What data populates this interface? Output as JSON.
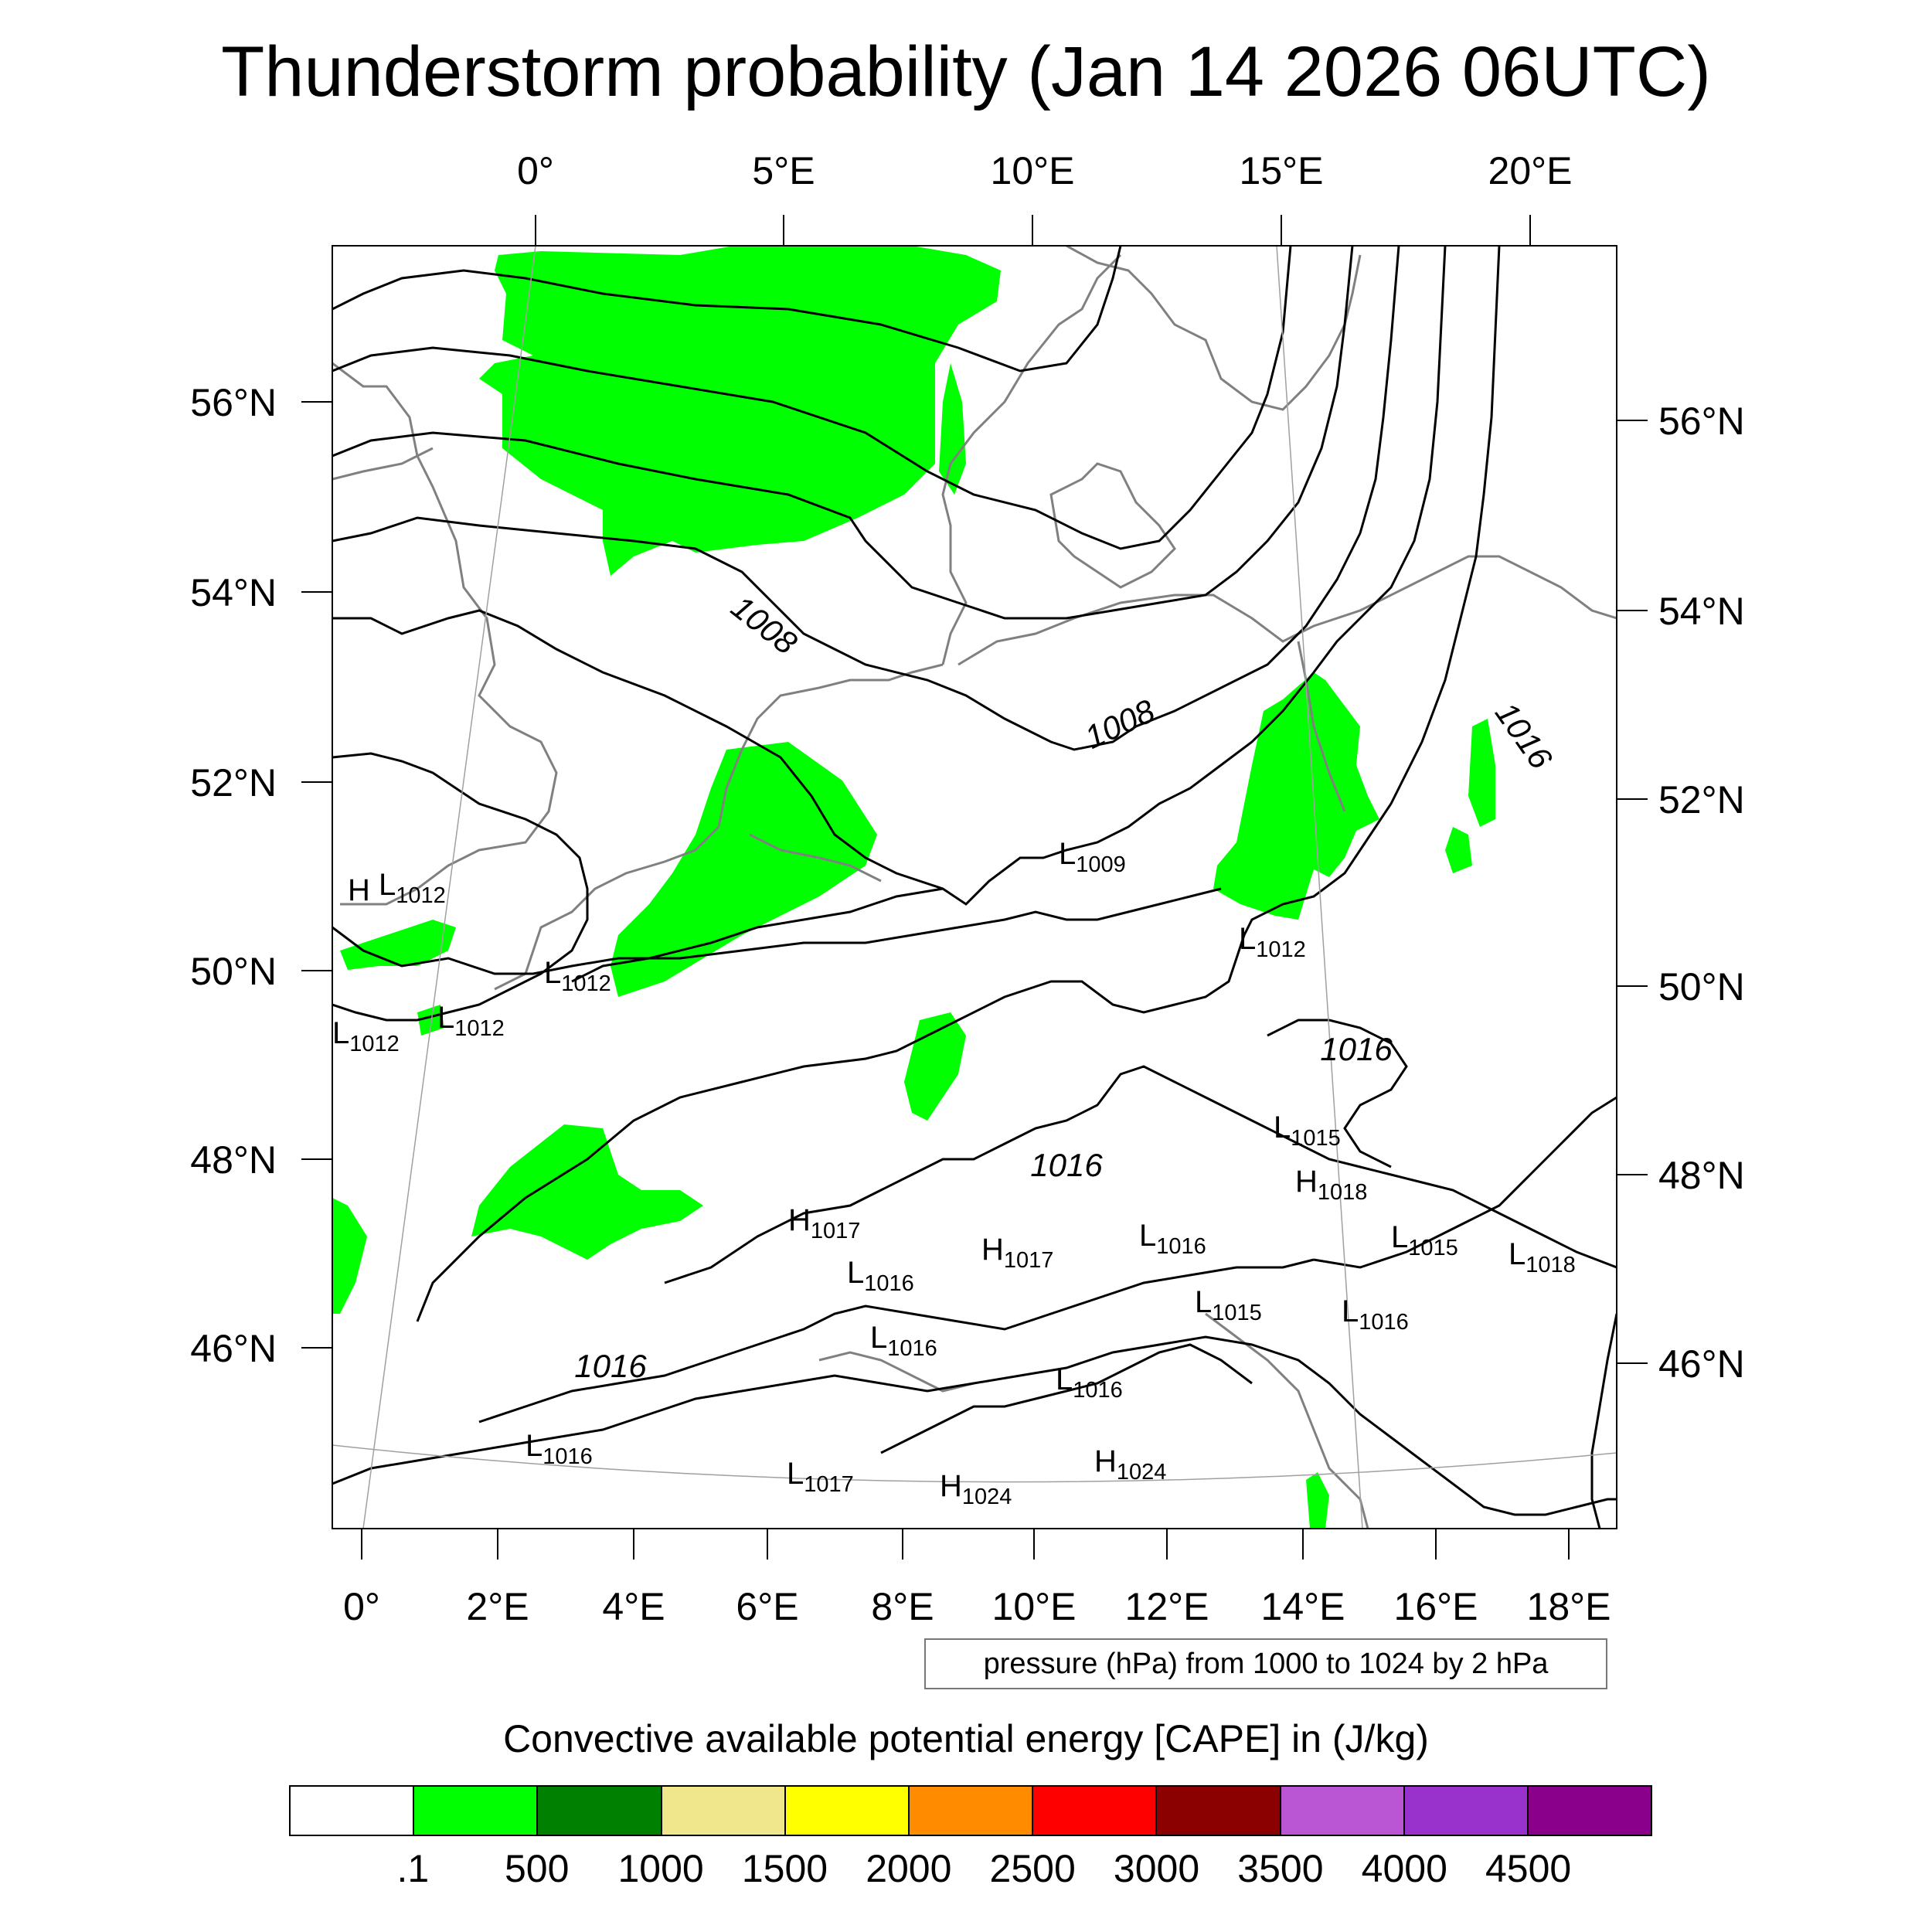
{
  "title": "Thunderstorm probability (Jan 14 2026 06UTC)",
  "top_lon_labels": [
    "0°",
    "5°E",
    "10°E",
    "15°E",
    "20°E"
  ],
  "bottom_lon_labels": [
    "0°",
    "2°E",
    "4°E",
    "6°E",
    "8°E",
    "10°E",
    "12°E",
    "14°E",
    "16°E",
    "18°E"
  ],
  "left_lat_labels": [
    "56°N",
    "54°N",
    "52°N",
    "50°N",
    "48°N",
    "46°N"
  ],
  "right_lat_labels": [
    "56°N",
    "54°N",
    "52°N",
    "50°N",
    "48°N",
    "46°N"
  ],
  "pressure_note": "pressure (hPa) from 1000 to 1024 by 2 hPa",
  "colorbar": {
    "title": "Convective available potential energy [CAPE] in (J/kg)",
    "colors": [
      "#ffffff",
      "#00ff00",
      "#008000",
      "#f0e68c",
      "#ffff00",
      "#ff8c00",
      "#ff0000",
      "#8b0000",
      "#ba55d3",
      "#9932cc",
      "#8b008b"
    ],
    "labels": [
      ".1",
      "500",
      "1000",
      "1500",
      "2000",
      "2500",
      "3000",
      "3500",
      "4000",
      "4500"
    ]
  },
  "pressure_centers": [
    {
      "type": "H",
      "value": ""
    },
    {
      "type": "L",
      "value": "1012"
    },
    {
      "type": "L",
      "value": "1012"
    },
    {
      "type": "L",
      "value": "1012"
    },
    {
      "type": "L",
      "value": "1012"
    },
    {
      "type": "L",
      "value": "1009"
    },
    {
      "type": "L",
      "value": "1012"
    },
    {
      "type": "L",
      "value": "1015"
    },
    {
      "type": "H",
      "value": "1018"
    },
    {
      "type": "H",
      "value": "1017"
    },
    {
      "type": "H",
      "value": "1017"
    },
    {
      "type": "L",
      "value": "1016"
    },
    {
      "type": "L",
      "value": "1016"
    },
    {
      "type": "L",
      "value": "1015"
    },
    {
      "type": "L",
      "value": "1016"
    },
    {
      "type": "L",
      "value": "1015"
    },
    {
      "type": "L",
      "value": "1018"
    },
    {
      "type": "L",
      "value": "1016"
    },
    {
      "type": "L",
      "value": "1016"
    },
    {
      "type": "L",
      "value": "1016"
    },
    {
      "type": "H",
      "value": "1024"
    },
    {
      "type": "L",
      "value": "1017"
    },
    {
      "type": "H",
      "value": "1024"
    }
  ],
  "isobar_labels": [
    "1008",
    "1008",
    "1016",
    "1016",
    "1016",
    "1016"
  ],
  "line_colors": {
    "isobar": "#000000",
    "coast": "#808080",
    "cape": "#00ff00"
  }
}
